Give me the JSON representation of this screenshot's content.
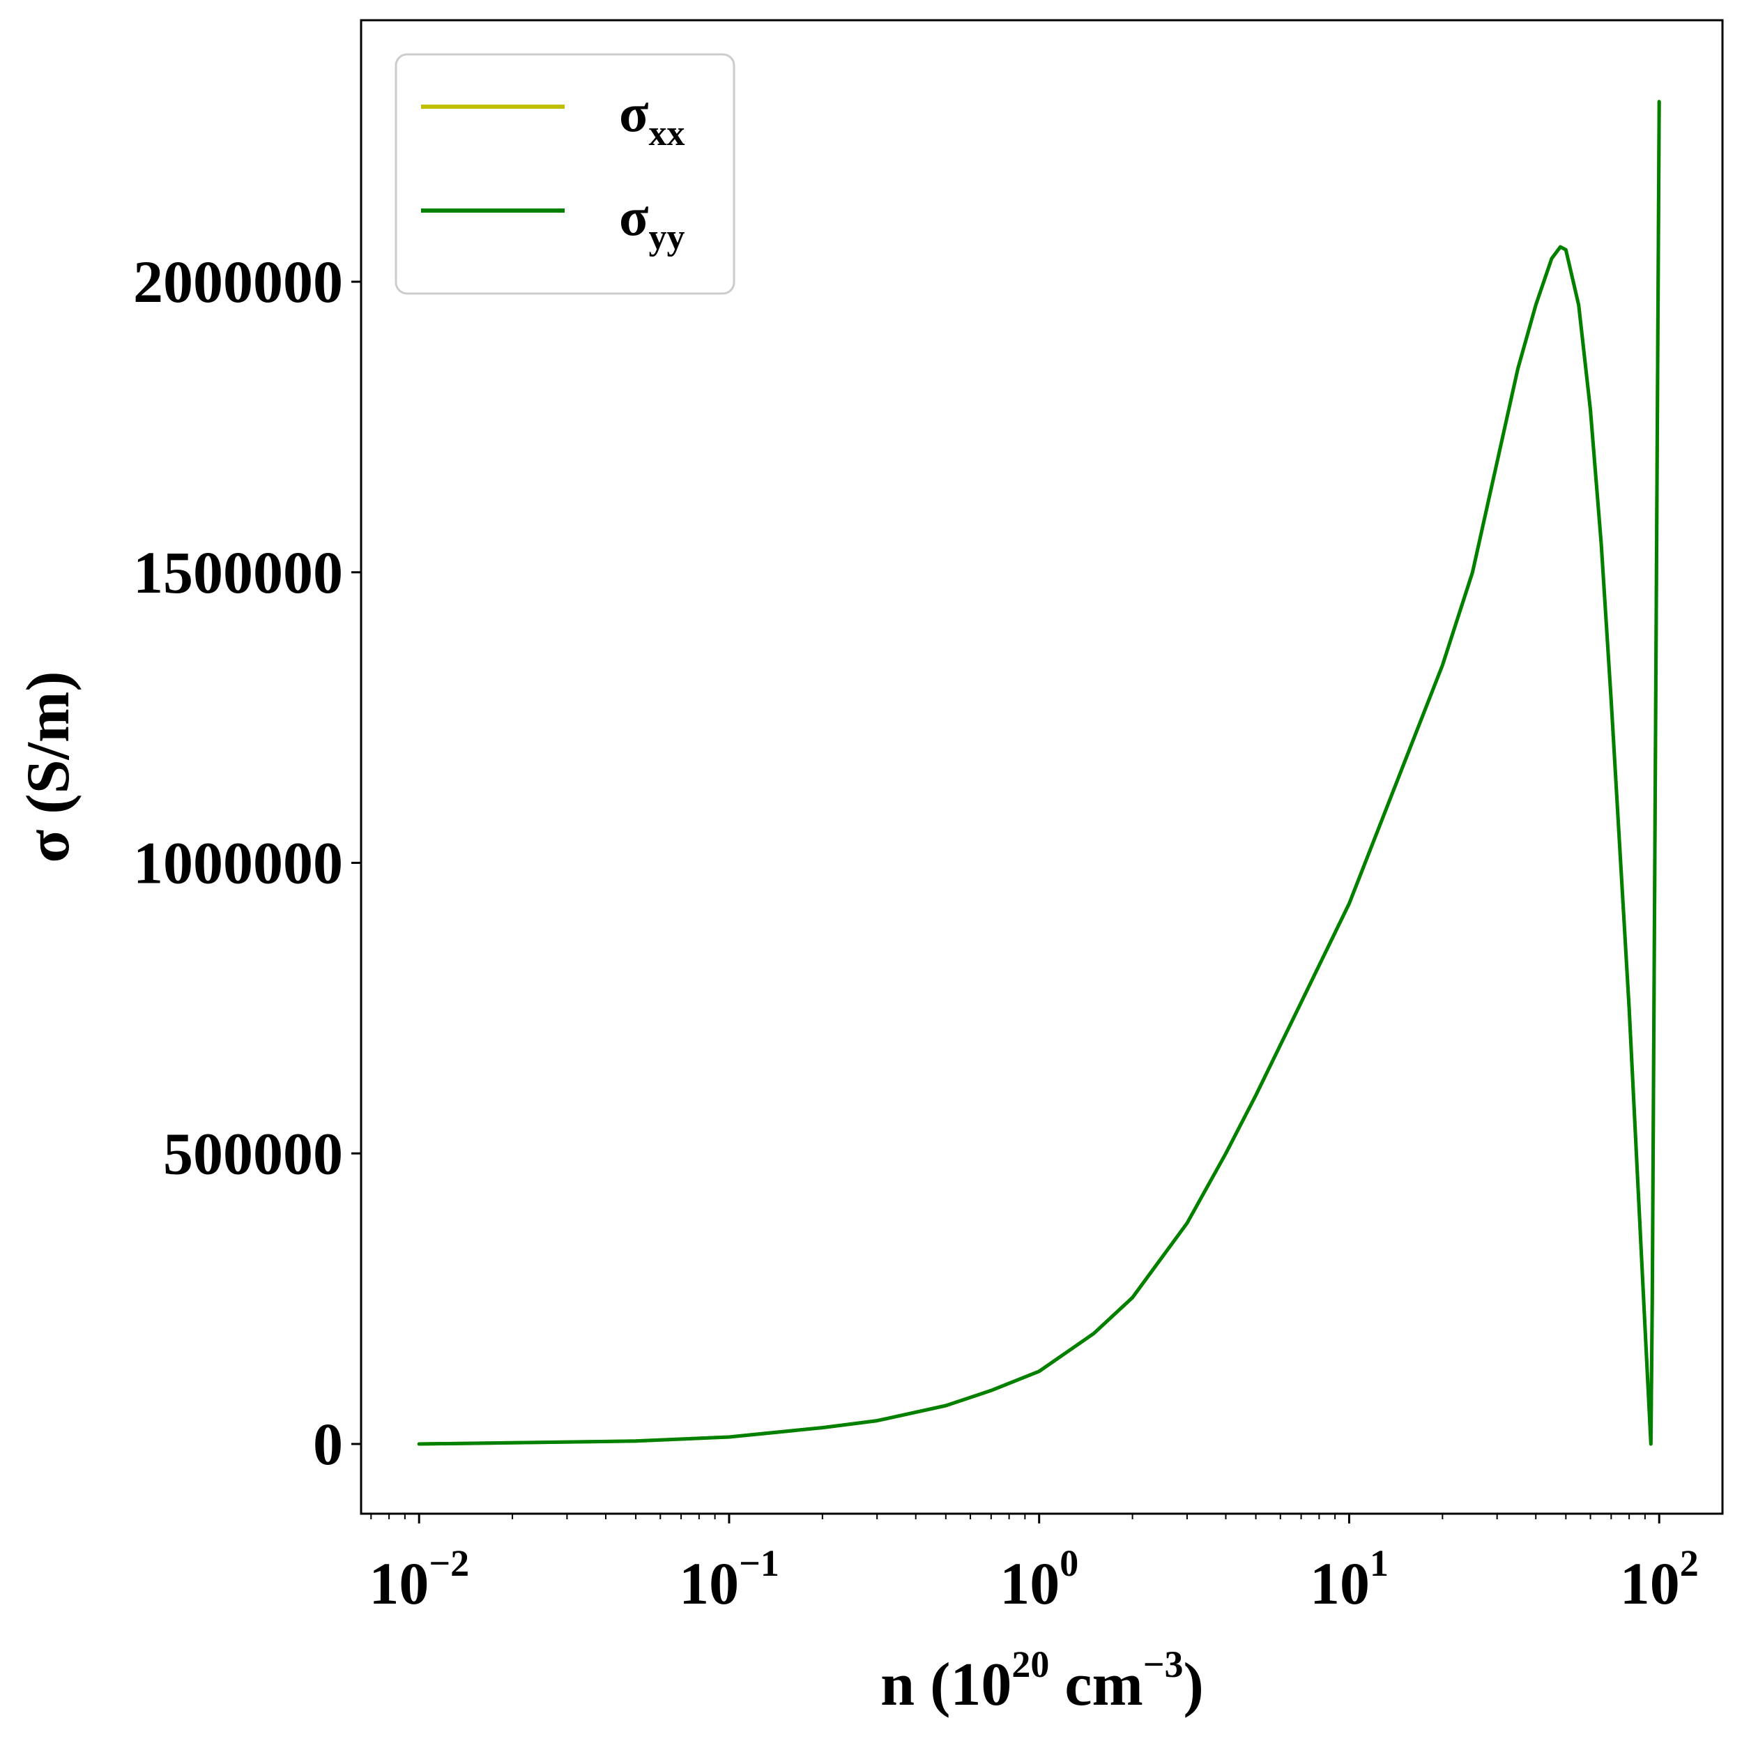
{
  "chart_data": {
    "type": "line",
    "xlabel": {
      "base": "n (10",
      "exp1": "20",
      "mid": " cm",
      "exp2": "−3",
      "end": ")"
    },
    "ylabel": "σ (S/m)",
    "x_scale": "log",
    "xlim": [
      0.0065,
      160
    ],
    "ylim": [
      -120000,
      2450000
    ],
    "grid": false,
    "legend_position": "top-left",
    "x_ticks": [
      {
        "value": 0.01,
        "base": "10",
        "exp": "−2"
      },
      {
        "value": 0.1,
        "base": "10",
        "exp": "−1"
      },
      {
        "value": 1,
        "base": "10",
        "exp": "0"
      },
      {
        "value": 10,
        "base": "10",
        "exp": "1"
      },
      {
        "value": 100,
        "base": "10",
        "exp": "2"
      }
    ],
    "y_ticks": [
      {
        "value": 0,
        "label": "0"
      },
      {
        "value": 500000,
        "label": "500000"
      },
      {
        "value": 1000000,
        "label": "1000000"
      },
      {
        "value": 1500000,
        "label": "1500000"
      },
      {
        "value": 2000000,
        "label": "2000000"
      }
    ],
    "series": [
      {
        "name": "σ",
        "subscript": "xx",
        "color": "#bfbf00",
        "x": [
          0.01,
          0.02,
          0.05,
          0.1,
          0.2,
          0.3,
          0.5,
          0.7,
          1,
          1.5,
          2,
          3,
          4,
          5,
          7,
          10,
          15,
          20,
          25,
          30,
          35,
          40,
          45,
          48,
          50,
          55,
          60,
          65,
          70,
          80,
          90,
          94,
          95,
          100
        ],
        "y": [
          0,
          2000,
          5000,
          12000,
          28000,
          40000,
          66000,
          92000,
          125000,
          190000,
          252000,
          380000,
          500000,
          600000,
          760000,
          930000,
          1170000,
          1340000,
          1500000,
          1690000,
          1850000,
          1960000,
          2040000,
          2060000,
          2055000,
          1960000,
          1780000,
          1550000,
          1280000,
          750000,
          200000,
          0,
          250000,
          2310000
        ]
      },
      {
        "name": "σ",
        "subscript": "yy",
        "color": "#008000",
        "x": [
          0.01,
          0.02,
          0.05,
          0.1,
          0.2,
          0.3,
          0.5,
          0.7,
          1,
          1.5,
          2,
          3,
          4,
          5,
          7,
          10,
          15,
          20,
          25,
          30,
          35,
          40,
          45,
          48,
          50,
          55,
          60,
          65,
          70,
          80,
          90,
          94,
          95,
          100
        ],
        "y": [
          0,
          2000,
          5000,
          12000,
          28000,
          40000,
          66000,
          92000,
          125000,
          190000,
          252000,
          380000,
          500000,
          600000,
          760000,
          930000,
          1170000,
          1340000,
          1500000,
          1690000,
          1850000,
          1960000,
          2040000,
          2060000,
          2055000,
          1960000,
          1780000,
          1550000,
          1280000,
          750000,
          200000,
          0,
          250000,
          2310000
        ]
      }
    ]
  }
}
